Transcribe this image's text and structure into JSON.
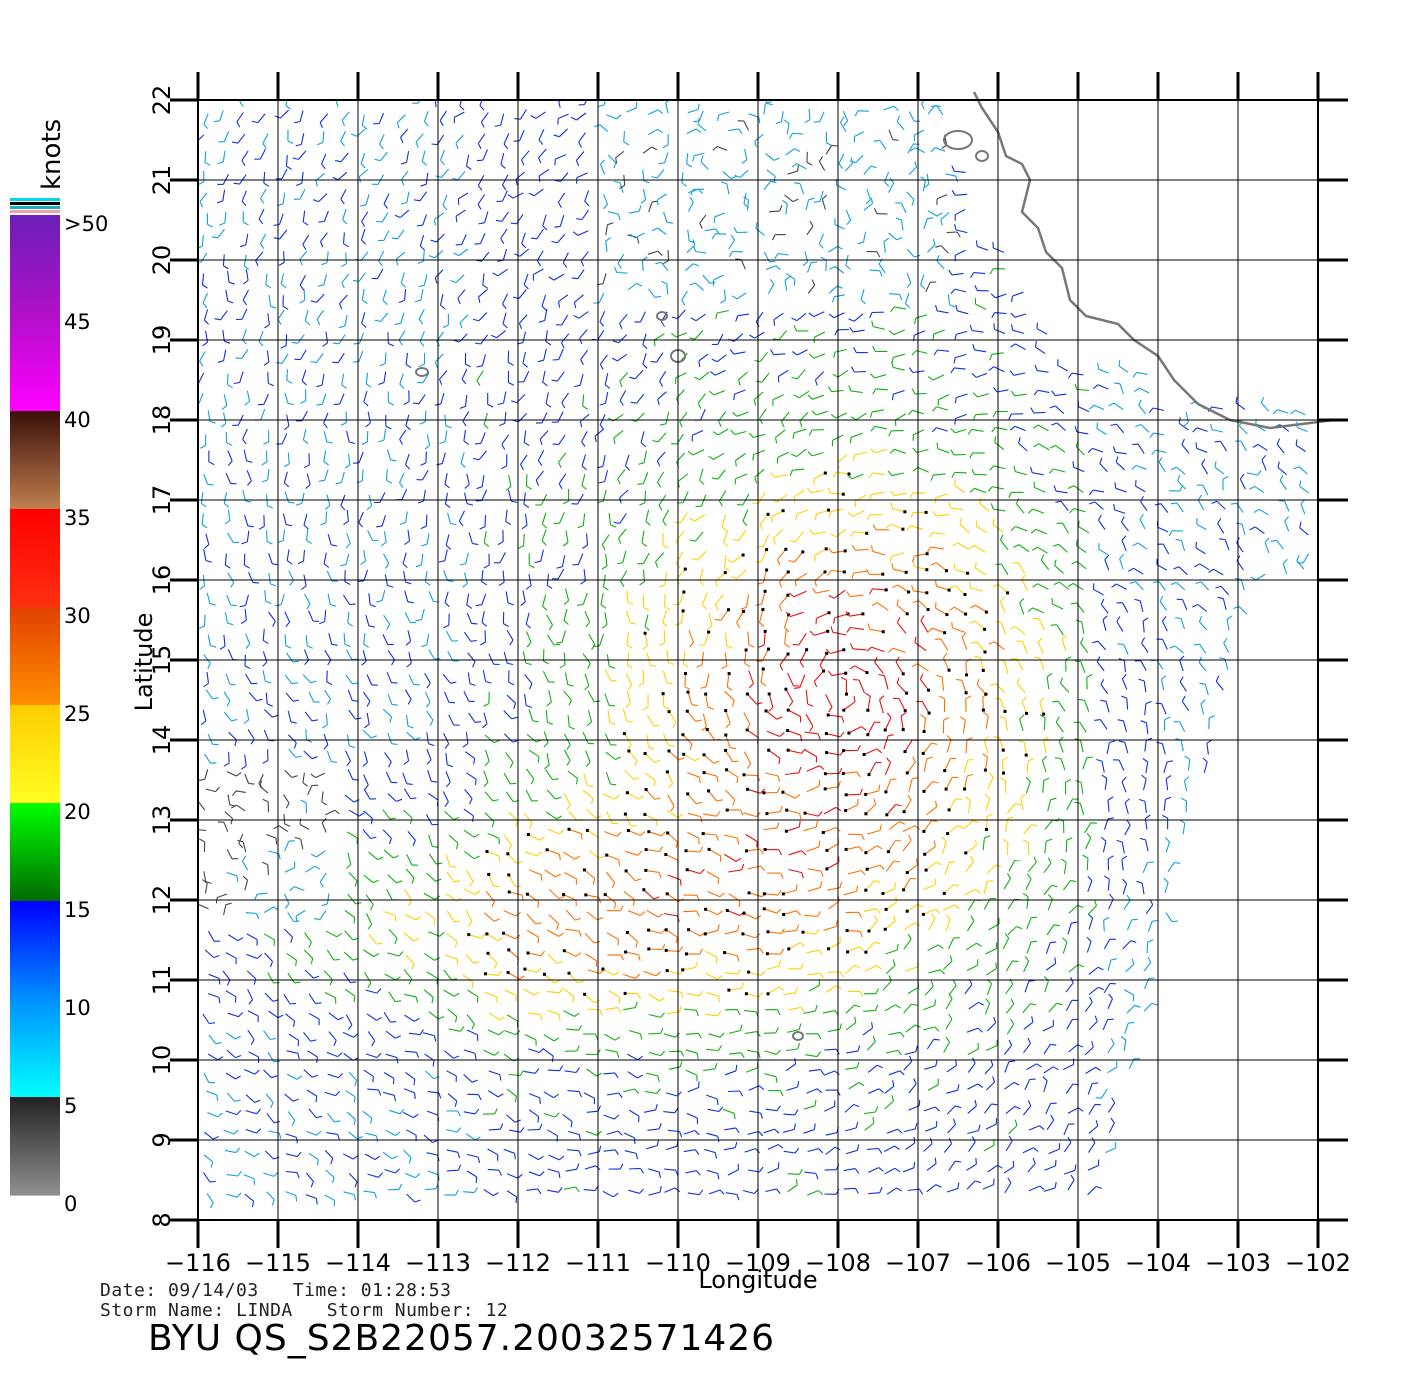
{
  "map": {
    "lon_range": [
      -116,
      -102
    ],
    "lat_range": [
      8,
      22
    ],
    "x_ticks": [
      -116,
      -115,
      -114,
      -113,
      -112,
      -111,
      -110,
      -109,
      -108,
      -107,
      -106,
      -105,
      -104,
      -103,
      -102
    ],
    "y_ticks": [
      8,
      9,
      10,
      11,
      12,
      13,
      14,
      15,
      16,
      17,
      18,
      19,
      20,
      21,
      22
    ],
    "xlabel": "Longitude",
    "ylabel": "Latitude",
    "grid": true
  },
  "colorbar": {
    "title": "knots",
    "labels": [
      ">50",
      "45",
      "40",
      "35",
      "30",
      "25",
      "20",
      "15",
      "10",
      "5",
      "0"
    ],
    "bands": [
      {
        "from": 50,
        "to": 45,
        "top": "#6a1fb8",
        "bottom": "#b010c8"
      },
      {
        "from": 45,
        "to": 40,
        "top": "#b010c8",
        "bottom": "#ff00ff"
      },
      {
        "from": 40,
        "to": 35,
        "top": "#3a0f08",
        "bottom": "#c08050"
      },
      {
        "from": 35,
        "to": 30,
        "top": "#ff0000",
        "bottom": "#ff3010"
      },
      {
        "from": 30,
        "to": 25,
        "top": "#e04000",
        "bottom": "#ff9000"
      },
      {
        "from": 25,
        "to": 20,
        "top": "#ffcc00",
        "bottom": "#ffff20"
      },
      {
        "from": 20,
        "to": 15,
        "top": "#00ff00",
        "bottom": "#006a00"
      },
      {
        "from": 15,
        "to": 10,
        "top": "#0000ff",
        "bottom": "#0090ff"
      },
      {
        "from": 10,
        "to": 5,
        "top": "#0090ff",
        "bottom": "#00ffff"
      },
      {
        "from": 5,
        "to": 0,
        "top": "#222222",
        "bottom": "#909090"
      }
    ]
  },
  "footer": {
    "date_label": "Date:",
    "date": "09/14/03",
    "time_label": "Time:",
    "time": "01:28:53",
    "storm_name_label": "Storm Name:",
    "storm_name": "LINDA",
    "storm_number_label": "Storm Number:",
    "storm_number": "12",
    "product_id": "BYU QS_S2B22057.20032571426"
  }
}
